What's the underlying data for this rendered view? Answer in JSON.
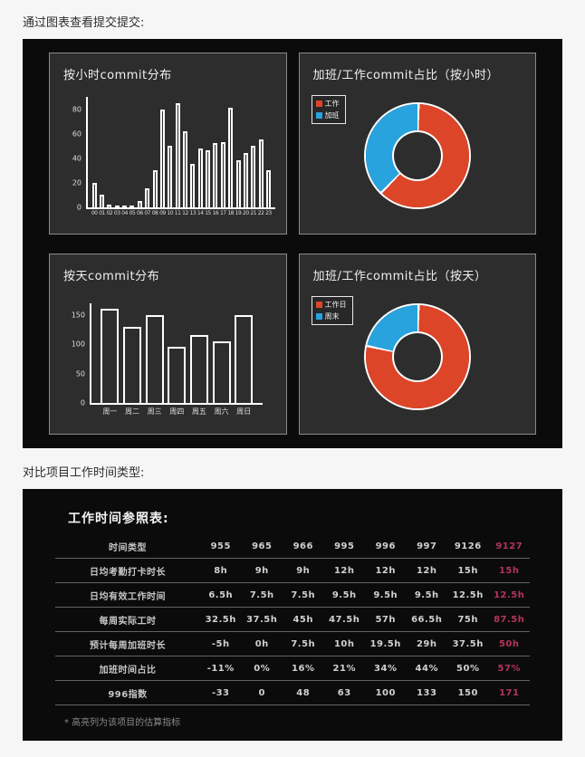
{
  "page": {
    "intro_charts": "通过图表查看提交提交:",
    "intro_table": "对比项目工作时间类型:"
  },
  "colors": {
    "work_red": "#dd4528",
    "overtime_blue": "#28a3dd",
    "highlight": "#b5345a",
    "panel_bg": "#2d2d2d",
    "container_bg": "#0b0b0b"
  },
  "chart_data": [
    {
      "type": "bar",
      "title": "按小时commit分布",
      "categories": [
        "00",
        "01",
        "02",
        "03",
        "04",
        "05",
        "06",
        "07",
        "08",
        "09",
        "10",
        "11",
        "12",
        "13",
        "14",
        "15",
        "16",
        "17",
        "18",
        "19",
        "20",
        "21",
        "22",
        "23"
      ],
      "values": [
        20,
        10,
        2,
        1,
        1,
        1,
        5,
        15,
        30,
        80,
        50,
        85,
        62,
        35,
        48,
        46,
        52,
        53,
        81,
        38,
        44,
        50,
        55,
        30
      ],
      "yticks": [
        0,
        20,
        40,
        60,
        80
      ],
      "ymax": 90,
      "xlabel": "",
      "ylabel": "",
      "grid": false
    },
    {
      "type": "pie",
      "title": "加班/工作commit占比（按小时）",
      "donut": true,
      "legend_position": "top-left",
      "slices": [
        {
          "label": "工作",
          "percent": 62,
          "color": "#dd4528"
        },
        {
          "label": "加班",
          "percent": 38,
          "color": "#28a3dd"
        }
      ]
    },
    {
      "type": "bar",
      "title": "按天commit分布",
      "categories": [
        "周一",
        "周二",
        "周三",
        "周四",
        "周五",
        "周六",
        "周日"
      ],
      "values": [
        160,
        130,
        150,
        95,
        115,
        105,
        150
      ],
      "yticks": [
        0,
        50,
        100,
        150
      ],
      "ymax": 170,
      "xlabel": "",
      "ylabel": "",
      "grid": false
    },
    {
      "type": "pie",
      "title": "加班/工作commit占比（按天）",
      "donut": true,
      "legend_position": "top-left",
      "slices": [
        {
          "label": "工作日",
          "percent": 78,
          "color": "#dd4528"
        },
        {
          "label": "周末",
          "percent": 22,
          "color": "#28a3dd"
        }
      ]
    }
  ],
  "table": {
    "title": "工作时间参照表:",
    "header_label": "时间类型",
    "columns": [
      "955",
      "965",
      "966",
      "995",
      "996",
      "997",
      "9126",
      "9127"
    ],
    "highlight_column": "9127",
    "rows": [
      {
        "label": "日均考勤打卡时长",
        "values": [
          "8h",
          "9h",
          "9h",
          "12h",
          "12h",
          "12h",
          "15h",
          "15h"
        ]
      },
      {
        "label": "日均有效工作时间",
        "values": [
          "6.5h",
          "7.5h",
          "7.5h",
          "9.5h",
          "9.5h",
          "9.5h",
          "12.5h",
          "12.5h"
        ]
      },
      {
        "label": "每周实际工时",
        "values": [
          "32.5h",
          "37.5h",
          "45h",
          "47.5h",
          "57h",
          "66.5h",
          "75h",
          "87.5h"
        ]
      },
      {
        "label": "预计每周加班时长",
        "values": [
          "-5h",
          "0h",
          "7.5h",
          "10h",
          "19.5h",
          "29h",
          "37.5h",
          "50h"
        ]
      },
      {
        "label": "加班时间占比",
        "values": [
          "-11%",
          "0%",
          "16%",
          "21%",
          "34%",
          "44%",
          "50%",
          "57%"
        ]
      },
      {
        "label": "996指数",
        "values": [
          "-33",
          "0",
          "48",
          "63",
          "100",
          "133",
          "150",
          "171"
        ]
      }
    ],
    "footnote": "* 高亮列为该项目的估算指标"
  }
}
